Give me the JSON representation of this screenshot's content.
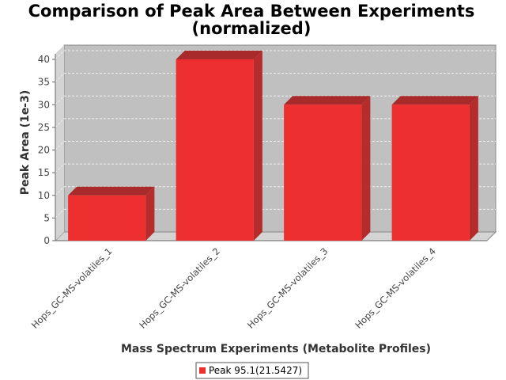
{
  "chart_data": {
    "type": "bar",
    "title_line1": "Comparison of Peak Area Between Experiments",
    "title_line2": "(normalized)",
    "xlabel": "Mass Spectrum Experiments (Metabolite Profiles)",
    "ylabel": "Peak Area (1e-3)",
    "categories": [
      "Hops_GC-MS-volatiles_1",
      "Hops_GC-MS-volatiles_2",
      "Hops_GC-MS-volatiles_3",
      "Hops_GC-MS-volatiles_4"
    ],
    "series": [
      {
        "name": "Peak 95.1(21.5427)",
        "values": [
          10,
          40,
          30,
          30
        ],
        "color": "#ee2f2f"
      }
    ],
    "ylim": [
      0,
      40
    ],
    "yticks": [
      "0",
      "5",
      "10",
      "15",
      "20",
      "25",
      "30",
      "35",
      "40"
    ],
    "grid": true,
    "legend_position": "bottom",
    "plot_background": "#c0c0c0"
  }
}
